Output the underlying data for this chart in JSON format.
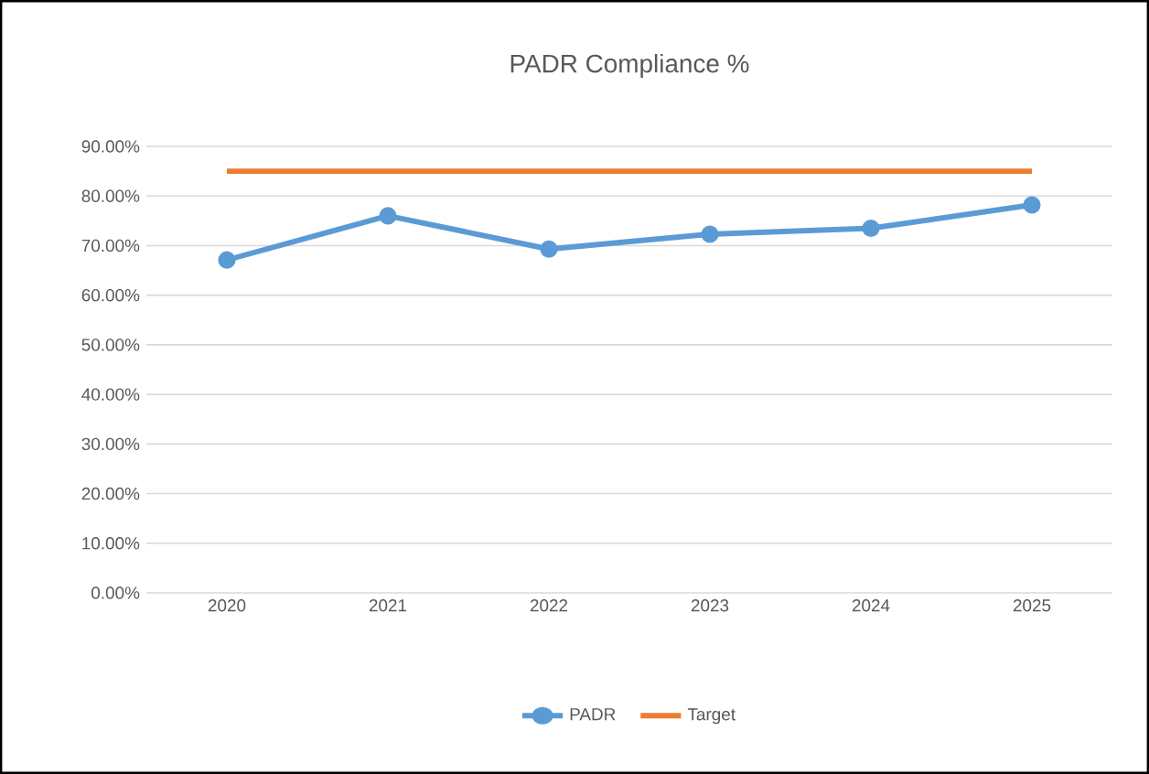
{
  "chart_data": {
    "type": "line",
    "title": "PADR Compliance %",
    "categories": [
      "2020",
      "2021",
      "2022",
      "2023",
      "2024",
      "2025"
    ],
    "series": [
      {
        "name": "PADR",
        "color": "#5b9bd5",
        "marker": "circle",
        "values": [
          67.1,
          76.0,
          69.3,
          72.3,
          73.5,
          78.2
        ]
      },
      {
        "name": "Target",
        "color": "#ed7d31",
        "marker": "none",
        "values": [
          85,
          85,
          85,
          85,
          85,
          85
        ]
      }
    ],
    "ylim": [
      0,
      90
    ],
    "yticks": [
      {
        "value": 0,
        "label": "0.00%"
      },
      {
        "value": 10,
        "label": "10.00%"
      },
      {
        "value": 20,
        "label": "20.00%"
      },
      {
        "value": 30,
        "label": "30.00%"
      },
      {
        "value": 40,
        "label": "40.00%"
      },
      {
        "value": 50,
        "label": "50.00%"
      },
      {
        "value": 60,
        "label": "60.00%"
      },
      {
        "value": 70,
        "label": "70.00%"
      },
      {
        "value": 80,
        "label": "80.00%"
      },
      {
        "value": 90,
        "label": "90.00%"
      }
    ],
    "grid": "y",
    "legend": "bottom"
  }
}
